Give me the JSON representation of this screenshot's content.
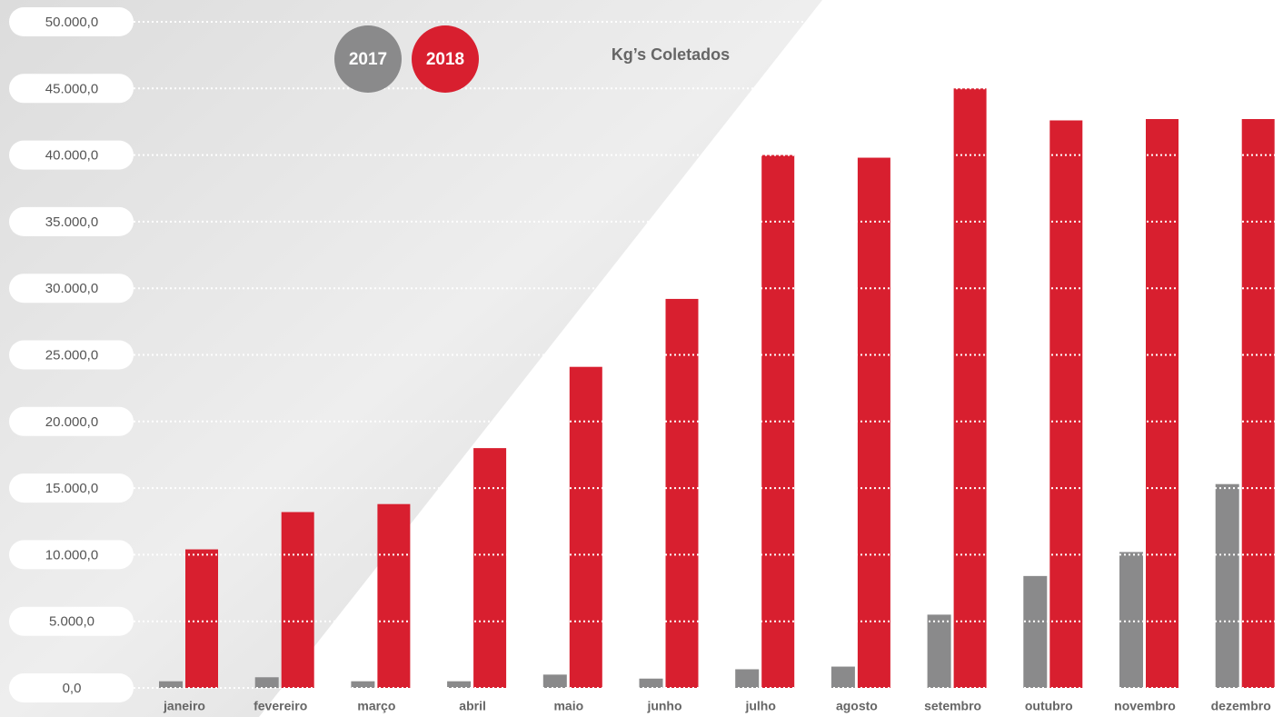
{
  "chart_data": {
    "type": "bar",
    "title": "Kg’s Coletados",
    "categories": [
      "janeiro",
      "fevereiro",
      "março",
      "abril",
      "maio",
      "junho",
      "julho",
      "agosto",
      "setembro",
      "outubro",
      "novembro",
      "dezembro"
    ],
    "series": [
      {
        "name": "2017",
        "color": "#8a8a8b",
        "values": [
          500,
          800,
          500,
          500,
          1000,
          700,
          1400,
          1600,
          5500,
          8400,
          10200,
          15300
        ]
      },
      {
        "name": "2018",
        "color": "#d81f2f",
        "values": [
          10400,
          13200,
          13800,
          18000,
          24100,
          29200,
          40000,
          39800,
          45000,
          42600,
          42700,
          42700
        ]
      }
    ],
    "ylim": [
      0,
      50000
    ],
    "yticks": [
      {
        "value": 0,
        "label": "0,0"
      },
      {
        "value": 5000,
        "label": "5.000,0"
      },
      {
        "value": 10000,
        "label": "10.000,0"
      },
      {
        "value": 15000,
        "label": "15.000,0"
      },
      {
        "value": 20000,
        "label": "20.000,0"
      },
      {
        "value": 25000,
        "label": "25.000,0"
      },
      {
        "value": 30000,
        "label": "30.000,0"
      },
      {
        "value": 35000,
        "label": "35.000,0"
      },
      {
        "value": 40000,
        "label": "40.000,0"
      },
      {
        "value": 45000,
        "label": "45.000,0"
      },
      {
        "value": 50000,
        "label": "50.000,0"
      }
    ],
    "grid": true
  }
}
